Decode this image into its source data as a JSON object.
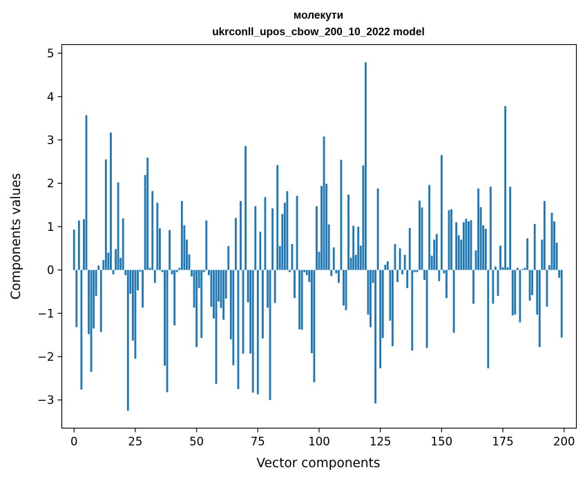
{
  "chart_data": {
    "type": "bar",
    "title": "молекути",
    "subtitle": "ukrconll_upos_cbow_200_10_2022 model",
    "xlabel": "Vector components",
    "ylabel": "Components values",
    "xlim": [
      -5,
      205
    ],
    "ylim": [
      -3.65,
      5.2
    ],
    "xticks": [
      0,
      25,
      50,
      75,
      100,
      125,
      150,
      175,
      200
    ],
    "yticks": [
      -3,
      -2,
      -1,
      0,
      1,
      2,
      3,
      4,
      5
    ],
    "bar_color": "#1f77b4",
    "grid": false,
    "x": [
      0,
      1,
      2,
      3,
      4,
      5,
      6,
      7,
      8,
      9,
      10,
      11,
      12,
      13,
      14,
      15,
      16,
      17,
      18,
      19,
      20,
      21,
      22,
      23,
      24,
      25,
      26,
      27,
      28,
      29,
      30,
      31,
      32,
      33,
      34,
      35,
      36,
      37,
      38,
      39,
      40,
      41,
      42,
      43,
      44,
      45,
      46,
      47,
      48,
      49,
      50,
      51,
      52,
      53,
      54,
      55,
      56,
      57,
      58,
      59,
      60,
      61,
      62,
      63,
      64,
      65,
      66,
      67,
      68,
      69,
      70,
      71,
      72,
      73,
      74,
      75,
      76,
      77,
      78,
      79,
      80,
      81,
      82,
      83,
      84,
      85,
      86,
      87,
      88,
      89,
      90,
      91,
      92,
      93,
      94,
      95,
      96,
      97,
      98,
      99,
      100,
      101,
      102,
      103,
      104,
      105,
      106,
      107,
      108,
      109,
      110,
      111,
      112,
      113,
      114,
      115,
      116,
      117,
      118,
      119,
      120,
      121,
      122,
      123,
      124,
      125,
      126,
      127,
      128,
      129,
      130,
      131,
      132,
      133,
      134,
      135,
      136,
      137,
      138,
      139,
      140,
      141,
      142,
      143,
      144,
      145,
      146,
      147,
      148,
      149,
      150,
      151,
      152,
      153,
      154,
      155,
      156,
      157,
      158,
      159,
      160,
      161,
      162,
      163,
      164,
      165,
      166,
      167,
      168,
      169,
      170,
      171,
      172,
      173,
      174,
      175,
      176,
      177,
      178,
      179,
      180,
      181,
      182,
      183,
      184,
      185,
      186,
      187,
      188,
      189,
      190,
      191,
      192,
      193,
      194,
      195,
      196,
      197,
      198,
      199
    ],
    "values": [
      0.93,
      -1.32,
      1.14,
      -2.76,
      1.17,
      3.57,
      -1.48,
      -2.35,
      -1.35,
      -0.6,
      0.1,
      -1.43,
      0.23,
      2.55,
      0.4,
      3.17,
      -0.1,
      0.48,
      2.02,
      0.28,
      1.19,
      -0.12,
      -3.25,
      -0.55,
      -1.63,
      -2.05,
      -0.47,
      -0.04,
      -0.87,
      2.19,
      2.59,
      0.05,
      1.82,
      -0.3,
      1.55,
      0.96,
      -0.05,
      -2.21,
      -2.82,
      0.92,
      -0.1,
      -1.28,
      -0.05,
      0.05,
      1.59,
      1.03,
      0.7,
      0.36,
      -0.15,
      -0.87,
      -1.78,
      -0.42,
      -1.57,
      -0.05,
      1.14,
      -0.12,
      -0.85,
      -1.12,
      -2.63,
      -0.73,
      -0.88,
      -1.15,
      -0.66,
      0.55,
      -1.6,
      -2.2,
      1.2,
      -2.75,
      1.59,
      -1.93,
      2.86,
      -0.75,
      -1.93,
      -2.83,
      1.47,
      -2.87,
      0.88,
      -1.58,
      1.68,
      -0.87,
      -3.0,
      1.42,
      -0.76,
      2.42,
      0.55,
      1.29,
      1.55,
      1.82,
      -0.05,
      0.6,
      -0.65,
      1.71,
      -1.37,
      -1.38,
      -0.05,
      -0.12,
      -0.28,
      -1.92,
      -2.59,
      1.47,
      0.42,
      1.94,
      3.08,
      1.99,
      1.05,
      -0.14,
      0.52,
      -0.08,
      -0.3,
      2.54,
      -0.82,
      -0.93,
      1.74,
      0.28,
      1.02,
      0.35,
      1.0,
      0.56,
      2.41,
      4.79,
      -1.03,
      -1.32,
      -0.3,
      -3.08,
      1.88,
      -2.27,
      -1.57,
      0.12,
      0.2,
      -1.17,
      -1.76,
      0.6,
      -0.28,
      0.5,
      -0.1,
      0.35,
      -0.42,
      0.97,
      -1.86,
      -0.05,
      -0.05,
      1.6,
      1.44,
      -0.23,
      -1.8,
      1.96,
      0.33,
      0.7,
      0.83,
      -0.26,
      2.65,
      -0.08,
      -0.65,
      1.38,
      1.4,
      -1.45,
      1.1,
      0.8,
      0.7,
      1.1,
      1.18,
      1.12,
      1.15,
      -0.78,
      0.45,
      1.88,
      1.45,
      1.03,
      0.95,
      -2.27,
      1.92,
      -0.78,
      0.08,
      -0.6,
      0.56,
      0.06,
      3.78,
      0.06,
      1.92,
      -1.05,
      -1.03,
      0.05,
      -1.21,
      0.02,
      0.05,
      0.73,
      -0.71,
      -0.58,
      1.06,
      -1.03,
      -1.78,
      0.7,
      1.59,
      -0.85,
      0.11,
      1.32,
      1.12,
      0.63,
      -0.18,
      -1.56
    ]
  }
}
